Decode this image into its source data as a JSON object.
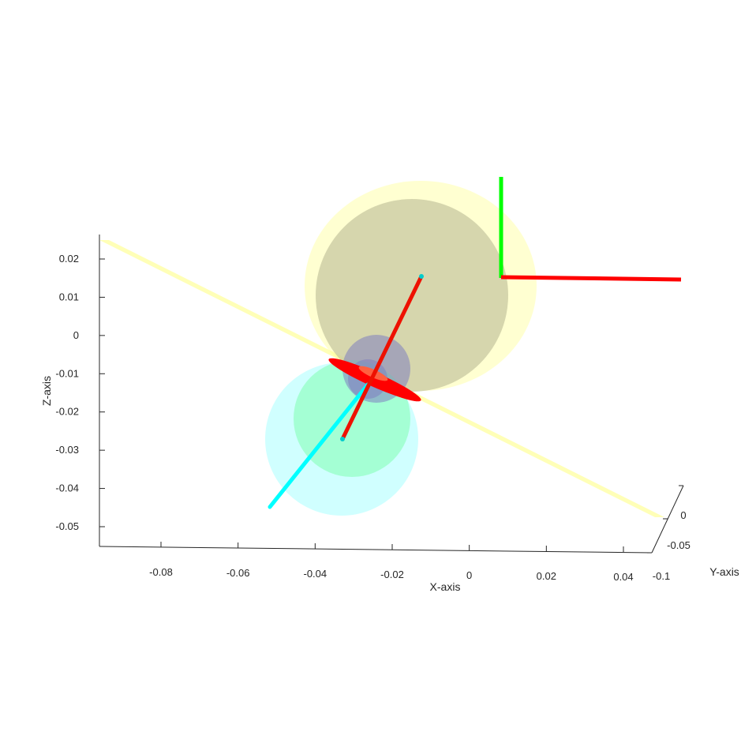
{
  "chart_data": {
    "type": "3d-scatter",
    "xlabel": "X-axis",
    "ylabel": "Y-axis",
    "zlabel": "Z-axis",
    "x_ticks": [
      "-0.08",
      "-0.06",
      "-0.04",
      "-0.02",
      "0",
      "0.02",
      "0.04"
    ],
    "y_ticks": [
      "-0.1",
      "-0.05",
      "0"
    ],
    "z_ticks": [
      "0.02",
      "0.01",
      "0",
      "-0.01",
      "-0.02",
      "-0.03",
      "-0.04",
      "-0.05"
    ],
    "xlim": [
      -0.095,
      0.045
    ],
    "zlim": [
      -0.055,
      0.025
    ],
    "grid": false,
    "legend": "none",
    "colors": {
      "axis": "#262626",
      "plane": "#ffff99",
      "large_sphere": "#c8c8a0",
      "cyan_sphere": "#aaffff",
      "green_sphere": "#80ffb0",
      "small_sphere": "#8080c0",
      "red_link": "#ff0000",
      "cyan_link": "#00ffff",
      "green_axis": "#00ff00"
    },
    "segments": [
      {
        "name": "red link",
        "color": "#ff0000"
      },
      {
        "name": "cyan link",
        "color": "#00ffff"
      },
      {
        "name": "green frame axis",
        "color": "#00ff00"
      },
      {
        "name": "red frame axis",
        "color": "#ff0000"
      }
    ]
  }
}
